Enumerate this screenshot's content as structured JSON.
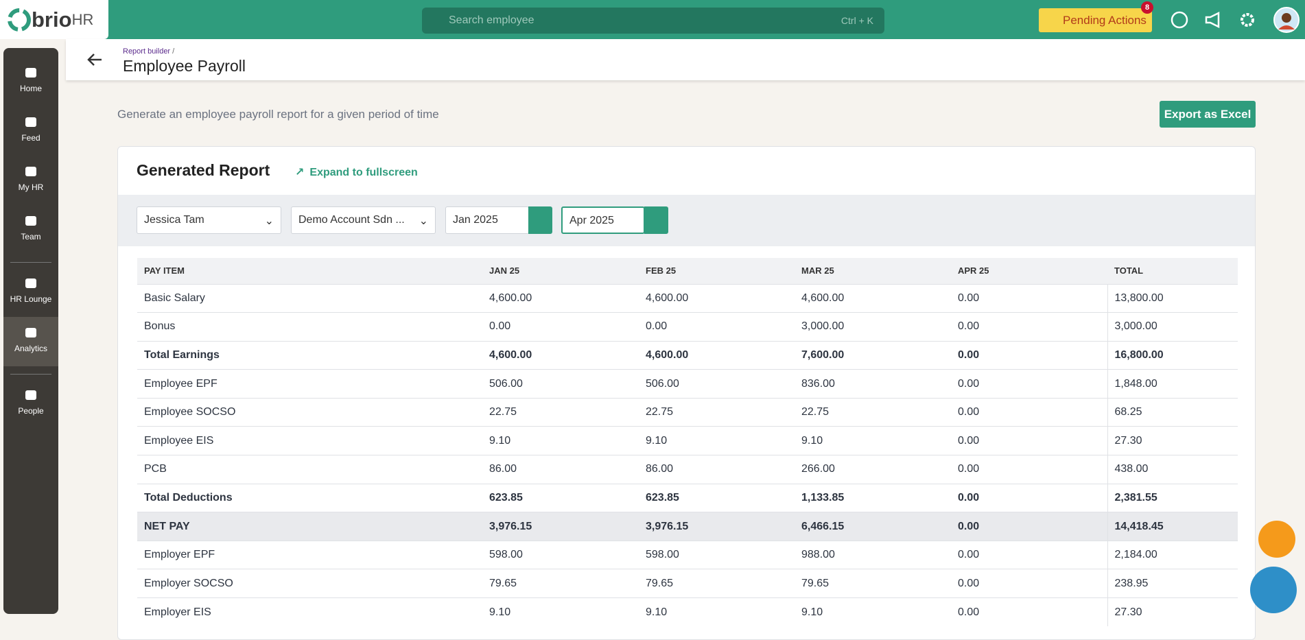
{
  "topbar": {
    "logo": "brio",
    "logo_suffix": "HR",
    "search_placeholder": "Search employee",
    "search_shortcut": "Ctrl + K",
    "pending_actions": "Pending Actions",
    "pending_count": "8"
  },
  "sidebar": [
    "Home",
    "Feed",
    "My HR",
    "Team",
    "HR Lounge",
    "Analytics",
    "People"
  ],
  "header": {
    "breadcrumb": "Report builder",
    "breadcrumb_separator": "/",
    "title": "Employee Payroll"
  },
  "description": "Generate an employee payroll report for a given period of time",
  "export_button": "Export as Excel",
  "report": {
    "title": "Generated Report",
    "expand": "Expand to fullscreen",
    "filters": {
      "employee": "Jessica Tam",
      "company": "Demo Account Sdn ...",
      "start": "Jan 2025",
      "end": "Apr 2025"
    }
  },
  "table": {
    "headers": [
      "PAY ITEM",
      "JAN 25",
      "FEB 25",
      "MAR 25",
      "APR 25",
      "TOTAL"
    ],
    "rows": [
      [
        "Basic Salary",
        "4,600.00",
        "4,600.00",
        "4,600.00",
        "0.00",
        "13,800.00"
      ],
      [
        "Bonus",
        "0.00",
        "0.00",
        "3,000.00",
        "0.00",
        "3,000.00"
      ],
      [
        "Total Earnings",
        "4,600.00",
        "4,600.00",
        "7,600.00",
        "0.00",
        "16,800.00"
      ],
      [
        "Employee EPF",
        "506.00",
        "506.00",
        "836.00",
        "0.00",
        "1,848.00"
      ],
      [
        "Employee SOCSO",
        "22.75",
        "22.75",
        "22.75",
        "0.00",
        "68.25"
      ],
      [
        "Employee EIS",
        "9.10",
        "9.10",
        "9.10",
        "0.00",
        "27.30"
      ],
      [
        "PCB",
        "86.00",
        "86.00",
        "266.00",
        "0.00",
        "438.00"
      ],
      [
        "Total Deductions",
        "623.85",
        "623.85",
        "1,133.85",
        "0.00",
        "2,381.55"
      ],
      [
        "NET PAY",
        "3,976.15",
        "3,976.15",
        "6,466.15",
        "0.00",
        "14,418.45"
      ],
      [
        "Employer EPF",
        "598.00",
        "598.00",
        "988.00",
        "0.00",
        "2,184.00"
      ],
      [
        "Employer SOCSO",
        "79.65",
        "79.65",
        "79.65",
        "0.00",
        "238.95"
      ],
      [
        "Employer EIS",
        "9.10",
        "9.10",
        "9.10",
        "0.00",
        "27.30"
      ]
    ]
  }
}
